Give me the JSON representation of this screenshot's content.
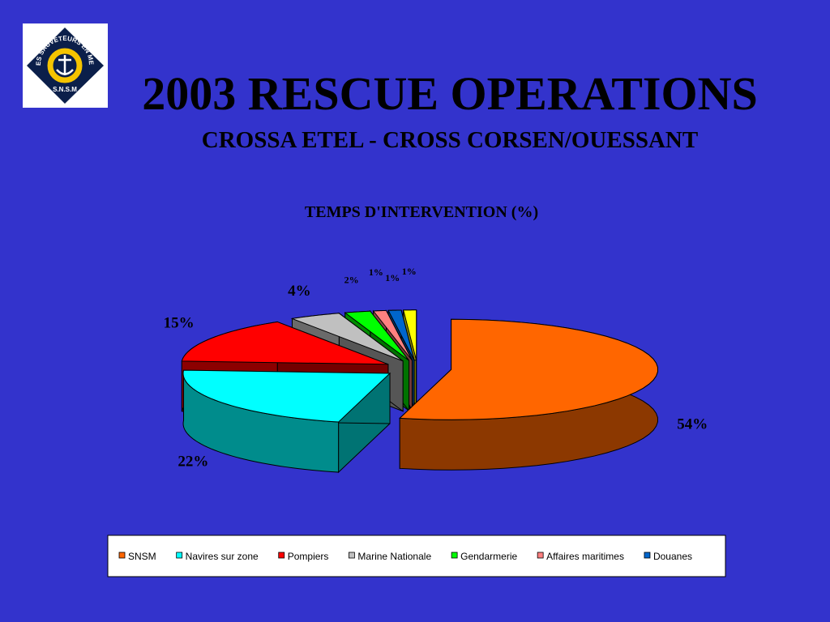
{
  "logo": {
    "top": "LES SAUVETEURS EN MER",
    "bottom": "S.N.S.M"
  },
  "title": "2003 RESCUE OPERATIONS",
  "subtitle": "CROSSA ETEL  -  CROSS CORSEN/OUESSANT",
  "chart_data": {
    "type": "pie",
    "title": "TEMPS  D'INTERVENTION  (%)",
    "categories": [
      "SNSM",
      "Navires sur zone",
      "Pompiers",
      "Marine Nationale",
      "Gendarmerie",
      "Affaires maritimes",
      "Douanes",
      null
    ],
    "values": [
      54,
      22,
      15,
      4,
      2,
      1,
      1,
      1
    ],
    "value_labels": [
      "54%",
      "22%",
      "15%",
      "4%",
      "2%",
      "1%",
      "1%",
      "1%"
    ],
    "colors": [
      "#ff6600",
      "#00ffff",
      "#ff0000",
      "#c0c0c0",
      "#00ff00",
      "#ff8080",
      "#0066cc",
      "#ffff00"
    ],
    "legend": "bottom"
  }
}
